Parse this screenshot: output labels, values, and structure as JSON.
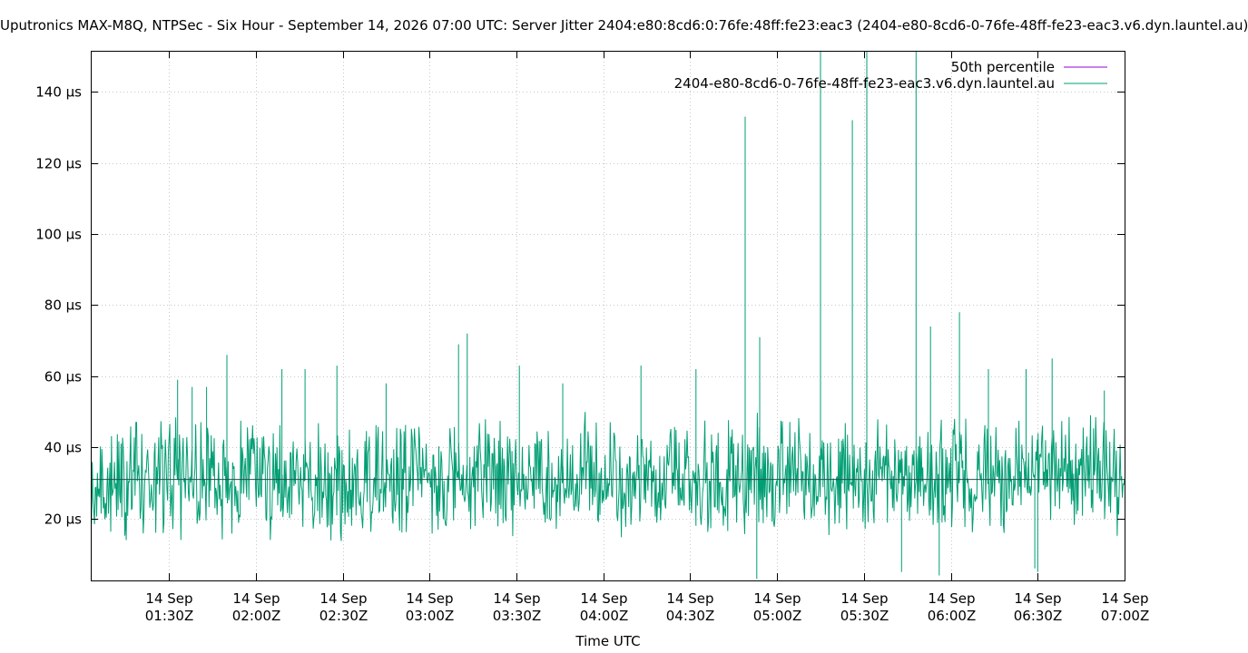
{
  "chart_data": {
    "type": "line",
    "title": "Uputronics MAX-M8Q, NTPSec - Six Hour - September 14, 2026 07:00 UTC: Server Jitter 2404:e80:8cd6:0:76fe:48ff:fe23:eac3 (2404-e80-8cd6-0-76fe-48ff-fe23-eac3.v6.dyn.launtel.au)",
    "xlabel": "Time UTC",
    "ylabel": "",
    "x_range": [
      "2026-09-14T01:03Z",
      "2026-09-14T07:00Z"
    ],
    "ylim": [
      2.6,
      151.5
    ],
    "y_ticks": [
      {
        "value": 20,
        "label": "20 µs"
      },
      {
        "value": 40,
        "label": "40 µs"
      },
      {
        "value": 60,
        "label": "60 µs"
      },
      {
        "value": 80,
        "label": "80 µs"
      },
      {
        "value": 100,
        "label": "100 µs"
      },
      {
        "value": 120,
        "label": "120 µs"
      },
      {
        "value": 140,
        "label": "140 µs"
      }
    ],
    "x_ticks": [
      {
        "time": "2026-09-14T01:30Z",
        "line1": "14 Sep",
        "line2": "01:30Z"
      },
      {
        "time": "2026-09-14T02:00Z",
        "line1": "14 Sep",
        "line2": "02:00Z"
      },
      {
        "time": "2026-09-14T02:30Z",
        "line1": "14 Sep",
        "line2": "02:30Z"
      },
      {
        "time": "2026-09-14T03:00Z",
        "line1": "14 Sep",
        "line2": "03:00Z"
      },
      {
        "time": "2026-09-14T03:30Z",
        "line1": "14 Sep",
        "line2": "03:30Z"
      },
      {
        "time": "2026-09-14T04:00Z",
        "line1": "14 Sep",
        "line2": "04:00Z"
      },
      {
        "time": "2026-09-14T04:30Z",
        "line1": "14 Sep",
        "line2": "04:30Z"
      },
      {
        "time": "2026-09-14T05:00Z",
        "line1": "14 Sep",
        "line2": "05:00Z"
      },
      {
        "time": "2026-09-14T05:30Z",
        "line1": "14 Sep",
        "line2": "05:30Z"
      },
      {
        "time": "2026-09-14T06:00Z",
        "line1": "14 Sep",
        "line2": "06:00Z"
      },
      {
        "time": "2026-09-14T06:30Z",
        "line1": "14 Sep",
        "line2": "06:30Z"
      },
      {
        "time": "2026-09-14T07:00Z",
        "line1": "14 Sep",
        "line2": "07:00Z"
      }
    ],
    "grid": true,
    "legend_position": "top-right",
    "series": [
      {
        "name": "50th percentile",
        "color": "#9400d3",
        "style": "constant",
        "value": 31
      },
      {
        "name": "2404-e80-8cd6-0-76fe-48ff-fe23-eac3.v6.dyn.launtel.au",
        "color": "#009e73",
        "style": "noisy-line",
        "base_range": [
          12,
          50
        ],
        "points": [
          {
            "x": "2026-09-14T01:33Z",
            "y": 59
          },
          {
            "x": "2026-09-14T01:38Z",
            "y": 57
          },
          {
            "x": "2026-09-14T01:43Z",
            "y": 57
          },
          {
            "x": "2026-09-14T01:50Z",
            "y": 66
          },
          {
            "x": "2026-09-14T02:09Z",
            "y": 62
          },
          {
            "x": "2026-09-14T02:17Z",
            "y": 62
          },
          {
            "x": "2026-09-14T02:28Z",
            "y": 63
          },
          {
            "x": "2026-09-14T02:45Z",
            "y": 58
          },
          {
            "x": "2026-09-14T03:10Z",
            "y": 69
          },
          {
            "x": "2026-09-14T03:13Z",
            "y": 72
          },
          {
            "x": "2026-09-14T03:31Z",
            "y": 63
          },
          {
            "x": "2026-09-14T03:46Z",
            "y": 58
          },
          {
            "x": "2026-09-14T04:13Z",
            "y": 63
          },
          {
            "x": "2026-09-14T04:32Z",
            "y": 62
          },
          {
            "x": "2026-09-14T04:49Z",
            "y": 133
          },
          {
            "x": "2026-09-14T04:53Z",
            "y": 3
          },
          {
            "x": "2026-09-14T04:54Z",
            "y": 71
          },
          {
            "x": "2026-09-14T05:15Z",
            "y": 152
          },
          {
            "x": "2026-09-14T05:26Z",
            "y": 132
          },
          {
            "x": "2026-09-14T05:31Z",
            "y": 152
          },
          {
            "x": "2026-09-14T05:43Z",
            "y": 5
          },
          {
            "x": "2026-09-14T05:48Z",
            "y": 152
          },
          {
            "x": "2026-09-14T05:53Z",
            "y": 74
          },
          {
            "x": "2026-09-14T05:56Z",
            "y": 4
          },
          {
            "x": "2026-09-14T06:03Z",
            "y": 78
          },
          {
            "x": "2026-09-14T06:13Z",
            "y": 62
          },
          {
            "x": "2026-09-14T06:26Z",
            "y": 62
          },
          {
            "x": "2026-09-14T06:29Z",
            "y": 6
          },
          {
            "x": "2026-09-14T06:30Z",
            "y": 5
          },
          {
            "x": "2026-09-14T06:35Z",
            "y": 65
          },
          {
            "x": "2026-09-14T06:53Z",
            "y": 56
          }
        ]
      }
    ]
  }
}
